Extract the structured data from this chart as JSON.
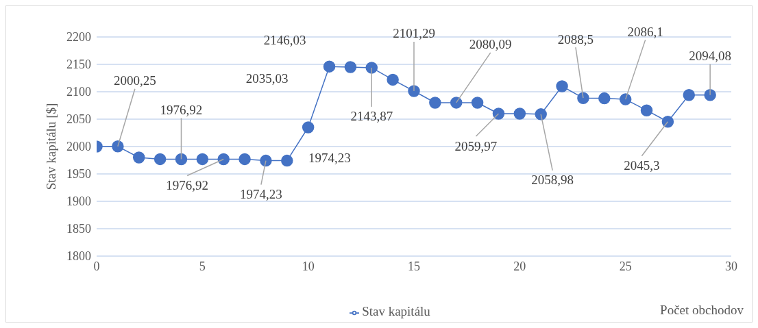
{
  "chart_data": {
    "type": "line",
    "ylabel": "Stav kapitálu [$]",
    "xlabel": "Počet obchodov",
    "x": [
      0,
      1,
      2,
      3,
      4,
      5,
      6,
      7,
      8,
      9,
      10,
      11,
      12,
      13,
      14,
      15,
      16,
      17,
      18,
      19,
      20,
      21,
      22,
      23,
      24,
      25,
      26,
      27,
      28,
      29
    ],
    "series": [
      {
        "name": "Stav kapitálu",
        "color": "#4472c4",
        "values": [
          2000,
          2000.25,
          1980,
          1977,
          1976.92,
          1977,
          1976.92,
          1977,
          1974.23,
          1974.23,
          2035.03,
          2146.03,
          2145,
          2143.87,
          2122,
          2101.29,
          2080,
          2080.09,
          2080,
          2059.97,
          2060,
          2058.98,
          2110,
          2088.5,
          2088,
          2086.1,
          2066,
          2045.3,
          2094,
          2094.08
        ],
        "value_labels": [
          null,
          "2000,25",
          null,
          null,
          "1976,92",
          null,
          "1976,92",
          null,
          "1974,23",
          "1974,23",
          "2035,03",
          "2146,03",
          null,
          "2143,87",
          null,
          "2101,29",
          null,
          "2080,09",
          null,
          "2059,97",
          null,
          "2058,98",
          null,
          "2088,5",
          null,
          "2086,1",
          null,
          "2045,3",
          null,
          "2094,08"
        ]
      }
    ],
    "xlim": [
      0,
      30
    ],
    "xticks": [
      0,
      5,
      10,
      15,
      20,
      25,
      30
    ],
    "ylim": [
      1800,
      2200
    ],
    "yticks": [
      1800,
      1850,
      1900,
      1950,
      2000,
      2050,
      2100,
      2150,
      2200
    ],
    "grid": "y",
    "legend": "bottom",
    "marker": "circle",
    "line_style": "solid"
  }
}
